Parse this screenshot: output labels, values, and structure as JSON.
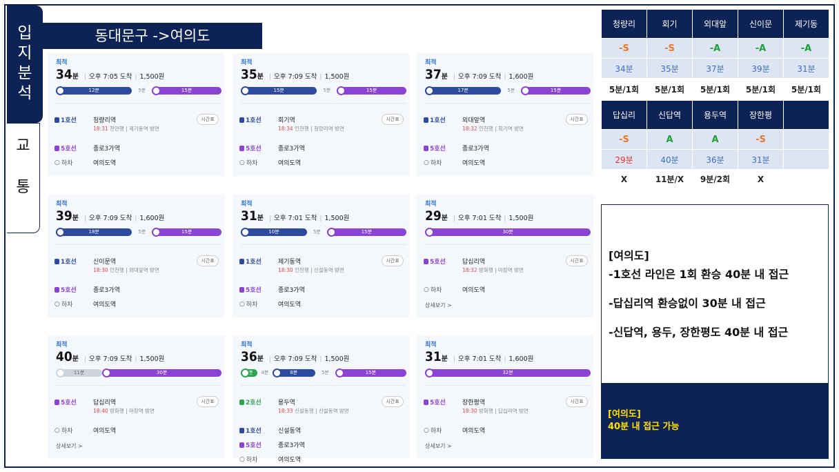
{
  "side": {
    "tab1": "입\n지\n분\n석",
    "tab2": "교\n\n통"
  },
  "route_title": "동대문구 ->여의도",
  "cards": [
    {
      "best": "최적",
      "min": "34",
      "unit": "분",
      "arrive": "오후 7:05 도착",
      "fare": "1,500원",
      "bar": [
        {
          "label": "12분",
          "color": "#2c4a9e",
          "w": 0.46
        },
        {
          "label": "5분",
          "wait": true,
          "w": 0.12
        },
        {
          "label": "15분",
          "color": "#8a44d4",
          "w": 0.42
        }
      ],
      "stops": [
        {
          "line": "1호선",
          "lc": "#2c4a9e",
          "station": "청량리역",
          "time": "18:31",
          "dir": "천안행 | 제기동역 방면",
          "tt": "시간표"
        },
        {
          "line": "5호선",
          "lc": "#8a44d4",
          "station": "종로3가역"
        },
        {
          "line": "하차",
          "off": true,
          "station": "여의도역"
        }
      ]
    },
    {
      "best": "최적",
      "min": "35",
      "unit": "분",
      "arrive": "오후 7:09 도착",
      "fare": "1,500원",
      "bar": [
        {
          "label": "15분",
          "color": "#2c4a9e",
          "w": 0.46
        },
        {
          "label": "5분",
          "wait": true,
          "w": 0.12
        },
        {
          "label": "15분",
          "color": "#8a44d4",
          "w": 0.42
        }
      ],
      "stops": [
        {
          "line": "1호선",
          "lc": "#2c4a9e",
          "station": "회기역",
          "time": "18:34",
          "dir": "인천행 | 청량리역 방면",
          "tt": "시간표"
        },
        {
          "line": "5호선",
          "lc": "#8a44d4",
          "station": "종로3가역"
        },
        {
          "line": "하차",
          "off": true,
          "station": "여의도역"
        }
      ]
    },
    {
      "best": "최적",
      "min": "37",
      "unit": "분",
      "arrive": "오후 7:09 도착",
      "fare": "1,600원",
      "bar": [
        {
          "label": "17분",
          "color": "#2c4a9e",
          "w": 0.46
        },
        {
          "label": "5분",
          "wait": true,
          "w": 0.12
        },
        {
          "label": "15분",
          "color": "#8a44d4",
          "w": 0.42
        }
      ],
      "stops": [
        {
          "line": "1호선",
          "lc": "#2c4a9e",
          "station": "외대앞역",
          "time": "18:32",
          "dir": "인천행 | 회기역 방면",
          "tt": "시간표"
        },
        {
          "line": "5호선",
          "lc": "#8a44d4",
          "station": "종로3가역"
        },
        {
          "line": "하차",
          "off": true,
          "station": "여의도역"
        }
      ]
    },
    {
      "best": "최적",
      "min": "39",
      "unit": "분",
      "arrive": "오후 7:09 도착",
      "fare": "1,600원",
      "bar": [
        {
          "label": "18분",
          "color": "#2c4a9e",
          "w": 0.46
        },
        {
          "label": "5분",
          "wait": true,
          "w": 0.12
        },
        {
          "label": "15분",
          "color": "#8a44d4",
          "w": 0.42
        }
      ],
      "stops": [
        {
          "line": "1호선",
          "lc": "#2c4a9e",
          "station": "신이문역",
          "time": "18:30",
          "dir": "인천행 | 외대앞역 방면",
          "tt": "시간표"
        },
        {
          "line": "5호선",
          "lc": "#8a44d4",
          "station": "종로3가역"
        },
        {
          "line": "하차",
          "off": true,
          "station": "여의도역"
        }
      ]
    },
    {
      "best": "최적",
      "min": "31",
      "unit": "분",
      "arrive": "오후 7:01 도착",
      "fare": "1,500원",
      "bar": [
        {
          "label": "10분",
          "color": "#2c4a9e",
          "w": 0.4
        },
        {
          "label": "5분",
          "wait": true,
          "w": 0.12
        },
        {
          "label": "15분",
          "color": "#8a44d4",
          "w": 0.48
        }
      ],
      "stops": [
        {
          "line": "1호선",
          "lc": "#2c4a9e",
          "station": "제기동역",
          "time": "18:30",
          "dir": "인천행 | 신설동역 방면",
          "tt": "시간표"
        },
        {
          "line": "5호선",
          "lc": "#8a44d4",
          "station": "종로3가역"
        },
        {
          "line": "하차",
          "off": true,
          "station": "여의도역"
        }
      ]
    },
    {
      "best": "최적",
      "min": "29",
      "unit": "분",
      "arrive": "오후 7:01 도착",
      "fare": "1,500원",
      "bar": [
        {
          "label": "30분",
          "color": "#8a44d4",
          "w": 1.0
        }
      ],
      "stops": [
        {
          "line": "5호선",
          "lc": "#8a44d4",
          "station": "답십리역",
          "time": "18:32",
          "dir": "방화행 | 마장역 방면",
          "tt": "시간표"
        },
        {
          "line": "하차",
          "off": true,
          "station": "여의도역"
        }
      ],
      "more": "상세보기 >"
    },
    {
      "best": "최적",
      "min": "40",
      "unit": "분",
      "arrive": "오후 7:09 도착",
      "fare": "1,500원",
      "bar": [
        {
          "label": "11분",
          "color": "#cfd4dc",
          "w": 0.28,
          "grey": true
        },
        {
          "label": "30분",
          "color": "#8a44d4",
          "w": 0.72
        }
      ],
      "stops": [
        {
          "line": "5호선",
          "lc": "#8a44d4",
          "station": "답십리역",
          "time": "18:40",
          "dir": "방화행 | 마장역 방면",
          "tt": "시간표"
        },
        {
          "line": "하차",
          "off": true,
          "station": "여의도역"
        }
      ],
      "more": "상세보기 >"
    },
    {
      "best": "최적",
      "min": "36",
      "unit": "분",
      "arrive": "오후 7:09 도착",
      "fare": "1,500원",
      "bar": [
        {
          "label": "2분",
          "color": "#2da44e",
          "w": 0.1
        },
        {
          "label": "4분",
          "wait": true,
          "w": 0.09
        },
        {
          "label": "8분",
          "color": "#2c4a9e",
          "w": 0.26
        },
        {
          "label": "5분",
          "wait": true,
          "w": 0.12
        },
        {
          "label": "15분",
          "color": "#8a44d4",
          "w": 0.43
        }
      ],
      "stops": [
        {
          "line": "2호선",
          "lc": "#2da44e",
          "station": "용두역",
          "time": "18:33",
          "dir": "신설동행 | 신설동역 방면",
          "tt": "시간표"
        },
        {
          "line": "1호선",
          "lc": "#2c4a9e",
          "station": "신설동역"
        },
        {
          "line": "5호선",
          "lc": "#8a44d4",
          "station": "종로3가역"
        },
        {
          "line": "하차",
          "off": true,
          "station": "여의도역"
        }
      ]
    },
    {
      "best": "최적",
      "min": "31",
      "unit": "분",
      "arrive": "오후 7:01 도착",
      "fare": "1,600원",
      "bar": [
        {
          "label": "32분",
          "color": "#8a44d4",
          "w": 1.0
        }
      ],
      "stops": [
        {
          "line": "5호선",
          "lc": "#8a44d4",
          "station": "장한평역",
          "time": "18:30",
          "dir": "방화행 | 답십리역 방면",
          "tt": "시간표"
        },
        {
          "line": "하차",
          "off": true,
          "station": "여의도역"
        }
      ],
      "more": "상세보기 >"
    }
  ],
  "table": {
    "row1_head": [
      "청량리",
      "회기",
      "외대앞",
      "신이문",
      "제기동"
    ],
    "row1_grade": [
      {
        "v": "-S",
        "c": "#e8772e"
      },
      {
        "v": "-S",
        "c": "#e8772e"
      },
      {
        "v": "-A",
        "c": "#1f9e3a"
      },
      {
        "v": "-A",
        "c": "#1f9e3a"
      },
      {
        "v": "-A",
        "c": "#1f9e3a"
      }
    ],
    "row1_time": [
      {
        "v": "34분",
        "c": "#3a6fc4"
      },
      {
        "v": "35분",
        "c": "#3a6fc4"
      },
      {
        "v": "37분",
        "c": "#3a6fc4"
      },
      {
        "v": "39분",
        "c": "#3a6fc4"
      },
      {
        "v": "31분",
        "c": "#3a6fc4"
      }
    ],
    "row1_transfer": [
      "5분/1회",
      "5분/1회",
      "5분/1회",
      "5분/1회",
      "5분/1회"
    ],
    "row2_head": [
      "답십리",
      "신답역",
      "용두역",
      "장한평",
      ""
    ],
    "row2_grade": [
      {
        "v": "-S",
        "c": "#e8772e"
      },
      {
        "v": "A",
        "c": "#1f9e3a"
      },
      {
        "v": "A",
        "c": "#1f9e3a"
      },
      {
        "v": "-S",
        "c": "#e8772e"
      },
      {
        "v": "",
        "c": "#000"
      }
    ],
    "row2_time": [
      {
        "v": "29분",
        "c": "#e03030"
      },
      {
        "v": "40분",
        "c": "#3a6fc4"
      },
      {
        "v": "36분",
        "c": "#3a6fc4"
      },
      {
        "v": "31분",
        "c": "#3a6fc4"
      },
      {
        "v": "",
        "c": "#000"
      }
    ],
    "row2_transfer": [
      "X",
      "11분/X",
      "9분/2회",
      "X",
      ""
    ]
  },
  "note": {
    "title": "[여의도]",
    "l1": "-1호선 라인은 1회 환승 40분 내 접근",
    "l2": "-답십리역 환승없이 30분 내 접근",
    "l3": "-신답역, 용두, 장한평도 40분 내 접근"
  },
  "conclusion": {
    "title": "[여의도]",
    "text": "40분 내 접근 가능"
  }
}
